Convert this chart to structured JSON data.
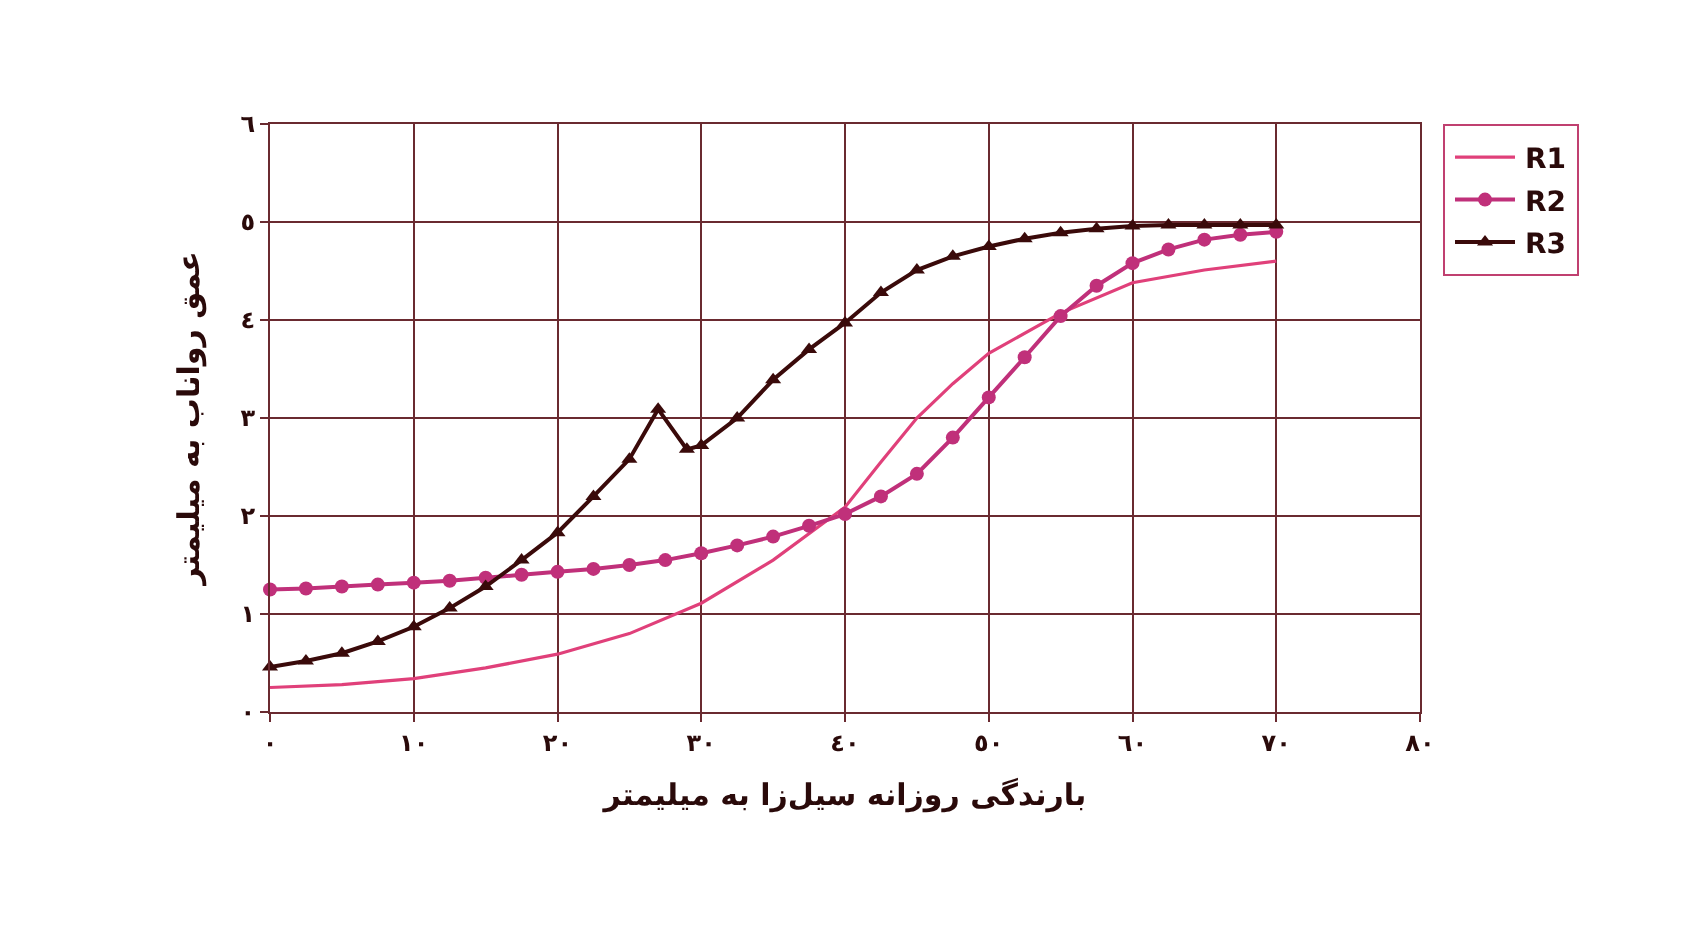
{
  "chart_data": {
    "type": "line",
    "xlabel": "بارندگی روزانه سیل‌زا به میلیمتر",
    "ylabel": "عمق رواناب به میلیمتر",
    "xlim": [
      0,
      80
    ],
    "xticks": [
      {
        "value": 0,
        "label": "٠"
      },
      {
        "value": 10,
        "label": "١٠"
      },
      {
        "value": 20,
        "label": "٢٠"
      },
      {
        "value": 30,
        "label": "٣٠"
      },
      {
        "value": 40,
        "label": "٤٠"
      },
      {
        "value": 50,
        "label": "٥٠"
      },
      {
        "value": 60,
        "label": "٦٠"
      },
      {
        "value": 70,
        "label": "٧٠"
      },
      {
        "value": 80,
        "label": "٨٠"
      }
    ],
    "ylim": [
      0,
      6
    ],
    "yticks": [
      {
        "value": 0,
        "label": "٠"
      },
      {
        "value": 1,
        "label": "١"
      },
      {
        "value": 2,
        "label": "٢"
      },
      {
        "value": 3,
        "label": "٣"
      },
      {
        "value": 4,
        "label": "٤"
      },
      {
        "value": 5,
        "label": "٥"
      },
      {
        "value": 6,
        "label": "٦"
      }
    ],
    "grid": true,
    "legend": "top right",
    "line_style": "solid",
    "series": [
      {
        "name": "R1",
        "color": "#e0407a",
        "marker": "none",
        "x": [
          0,
          5,
          10,
          15,
          20,
          25,
          30,
          35,
          40,
          42.5,
          45,
          47.5,
          50,
          55,
          60,
          65,
          70
        ],
        "values": [
          0.25,
          0.28,
          0.34,
          0.45,
          0.59,
          0.8,
          1.11,
          1.55,
          2.09,
          2.55,
          3.0,
          3.35,
          3.66,
          4.07,
          4.38,
          4.51,
          4.6
        ]
      },
      {
        "name": "R2",
        "color": "#c0307a",
        "marker": "circle",
        "x": [
          0,
          2.5,
          5,
          7.5,
          10,
          12.5,
          15,
          17.5,
          20,
          22.5,
          25,
          27.5,
          30,
          32.5,
          35,
          37.5,
          40,
          42.5,
          45,
          47.5,
          50,
          52.5,
          55,
          57.5,
          60,
          62.5,
          65,
          67.5,
          70
        ],
        "values": [
          1.25,
          1.26,
          1.28,
          1.3,
          1.32,
          1.34,
          1.37,
          1.4,
          1.43,
          1.46,
          1.5,
          1.55,
          1.62,
          1.7,
          1.79,
          1.9,
          2.02,
          2.2,
          2.43,
          2.8,
          3.21,
          3.62,
          4.04,
          4.35,
          4.58,
          4.72,
          4.82,
          4.87,
          4.9
        ]
      },
      {
        "name": "R3",
        "color": "#3a0a0a",
        "marker": "triangle",
        "x": [
          0,
          2.5,
          5,
          7.5,
          10,
          12.5,
          15,
          17.5,
          20,
          22.5,
          25,
          27,
          29,
          30,
          32.5,
          35,
          37.5,
          40,
          42.5,
          45,
          47.5,
          50,
          52.5,
          55,
          57.5,
          60,
          62.5,
          65,
          67.5,
          70
        ],
        "values": [
          0.46,
          0.52,
          0.6,
          0.72,
          0.87,
          1.06,
          1.28,
          1.55,
          1.83,
          2.2,
          2.58,
          3.09,
          2.68,
          2.72,
          3.0,
          3.39,
          3.7,
          3.97,
          4.28,
          4.51,
          4.65,
          4.75,
          4.83,
          4.89,
          4.93,
          4.96,
          4.97,
          4.97,
          4.97,
          4.97
        ]
      }
    ]
  }
}
